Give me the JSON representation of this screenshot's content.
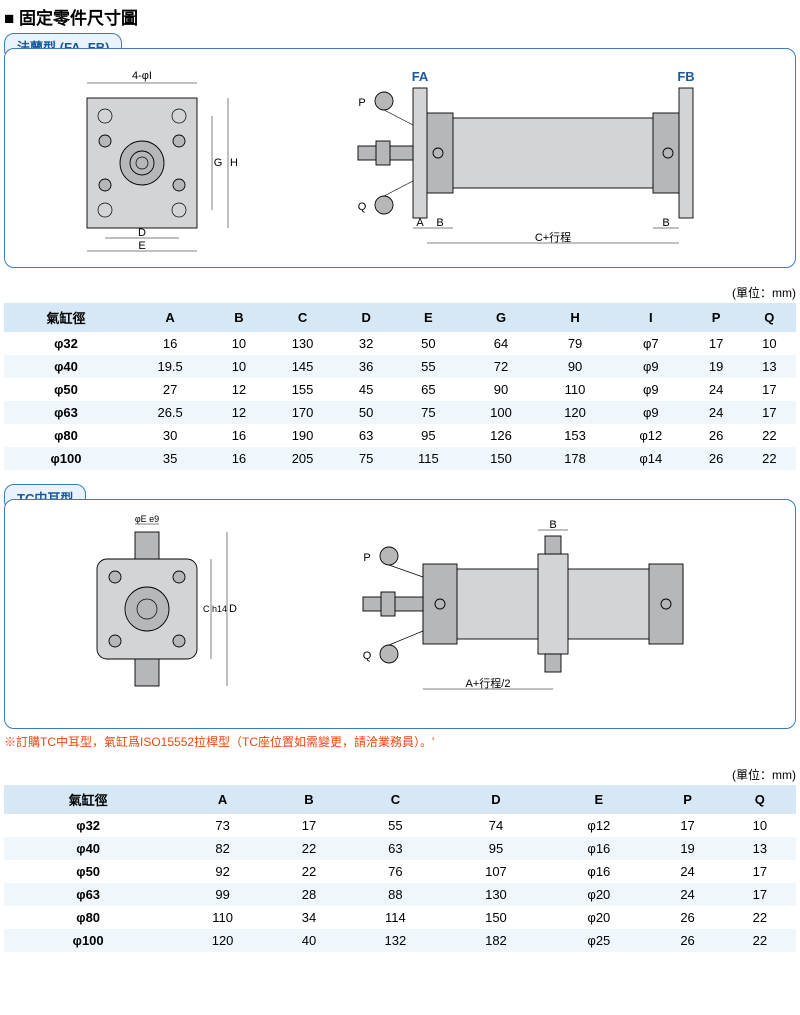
{
  "title": "■ 固定零件尺寸圖",
  "unit_label": "(單位：mm)",
  "sectionA": {
    "header": "法蘭型 (FA, FB)",
    "diagram": {
      "lbl_4phi_I": "4-φI",
      "lbl_D": "D",
      "lbl_E": "E",
      "lbl_G": "G",
      "lbl_H": "H",
      "lbl_P": "P",
      "lbl_Q": "Q",
      "lbl_A": "A",
      "lbl_B": "B",
      "lbl_FA": "FA",
      "lbl_FB": "FB",
      "lbl_C": "C+行程"
    },
    "table": {
      "columns": [
        "氣缸徑",
        "A",
        "B",
        "C",
        "D",
        "E",
        "G",
        "H",
        "I",
        "P",
        "Q"
      ],
      "rows": [
        [
          "φ32",
          "16",
          "10",
          "130",
          "32",
          "50",
          "64",
          "79",
          "φ7",
          "17",
          "10"
        ],
        [
          "φ40",
          "19.5",
          "10",
          "145",
          "36",
          "55",
          "72",
          "90",
          "φ9",
          "19",
          "13"
        ],
        [
          "φ50",
          "27",
          "12",
          "155",
          "45",
          "65",
          "90",
          "110",
          "φ9",
          "24",
          "17"
        ],
        [
          "φ63",
          "26.5",
          "12",
          "170",
          "50",
          "75",
          "100",
          "120",
          "φ9",
          "24",
          "17"
        ],
        [
          "φ80",
          "30",
          "16",
          "190",
          "63",
          "95",
          "126",
          "153",
          "φ12",
          "26",
          "22"
        ],
        [
          "φ100",
          "35",
          "16",
          "205",
          "75",
          "115",
          "150",
          "178",
          "φ14",
          "26",
          "22"
        ]
      ]
    }
  },
  "sectionB": {
    "header": "TC中耳型",
    "diagram": {
      "lbl_phiE": "φE e9",
      "lbl_C": "C h14",
      "lbl_D": "D",
      "lbl_P": "P",
      "lbl_Q": "Q",
      "lbl_B": "B",
      "lbl_A": "A+行程/2"
    },
    "note": "※訂購TC中耳型，氣缸爲ISO15552拉桿型（TC座位置如需變更，請洽業務員）。'",
    "table": {
      "columns": [
        "氣缸徑",
        "A",
        "B",
        "C",
        "D",
        "E",
        "P",
        "Q"
      ],
      "rows": [
        [
          "φ32",
          "73",
          "17",
          "55",
          "74",
          "φ12",
          "17",
          "10"
        ],
        [
          "φ40",
          "82",
          "22",
          "63",
          "95",
          "φ16",
          "19",
          "13"
        ],
        [
          "φ50",
          "92",
          "22",
          "76",
          "107",
          "φ16",
          "24",
          "17"
        ],
        [
          "φ63",
          "99",
          "28",
          "88",
          "130",
          "φ20",
          "24",
          "17"
        ],
        [
          "φ80",
          "110",
          "34",
          "114",
          "150",
          "φ20",
          "26",
          "22"
        ],
        [
          "φ100",
          "120",
          "40",
          "132",
          "182",
          "φ25",
          "26",
          "22"
        ]
      ]
    }
  }
}
